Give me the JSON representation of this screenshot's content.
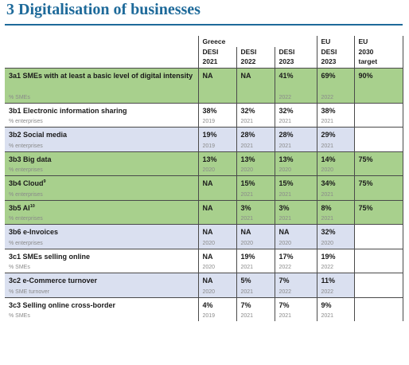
{
  "title": "3 Digitalisation of businesses",
  "header": {
    "group_greece": "Greece",
    "group_eu": "EU",
    "group_eu_target": "EU",
    "cols": [
      {
        "l1": "DESI",
        "l2": "2021"
      },
      {
        "l1": "DESI",
        "l2": "2022"
      },
      {
        "l1": "DESI",
        "l2": "2023"
      },
      {
        "l1": "DESI",
        "l2": "2023"
      },
      {
        "l1": "2030",
        "l2": "target"
      }
    ]
  },
  "rows": [
    {
      "name": "3a1 SMEs with at least a basic level of digital intensity",
      "sup": "",
      "unit": "% SMEs",
      "values": [
        "NA",
        "NA",
        "41%",
        "69%",
        "90%"
      ],
      "years": [
        "",
        "",
        "2022",
        "2022",
        ""
      ],
      "shade": "green"
    },
    {
      "name": "3b1 Electronic information sharing",
      "sup": "",
      "unit": "% enterprises",
      "values": [
        "38%",
        "32%",
        "32%",
        "38%",
        ""
      ],
      "years": [
        "2019",
        "2021",
        "2021",
        "2021",
        ""
      ],
      "shade": "none"
    },
    {
      "name": "3b2 Social media",
      "sup": "",
      "unit": "% enterprises",
      "values": [
        "19%",
        "28%",
        "28%",
        "29%",
        ""
      ],
      "years": [
        "2019",
        "2021",
        "2021",
        "2021",
        ""
      ],
      "shade": "blue"
    },
    {
      "name": "3b3 Big data",
      "sup": "",
      "unit": "% enterprises",
      "values": [
        "13%",
        "13%",
        "13%",
        "14%",
        "75%"
      ],
      "years": [
        "2020",
        "2020",
        "2020",
        "2020",
        ""
      ],
      "shade": "green"
    },
    {
      "name": "3b4 Cloud",
      "sup": "9",
      "unit": "% enterprises",
      "values": [
        "NA",
        "15%",
        "15%",
        "34%",
        "75%"
      ],
      "years": [
        "",
        "2021",
        "2021",
        "2021",
        ""
      ],
      "shade": "green"
    },
    {
      "name": "3b5 AI",
      "sup": "10",
      "unit": "% enterprises",
      "values": [
        "NA",
        "3%",
        "3%",
        "8%",
        "75%"
      ],
      "years": [
        "",
        "2021",
        "2021",
        "2021",
        ""
      ],
      "shade": "green"
    },
    {
      "name": "3b6 e-Invoices",
      "sup": "",
      "unit": "% enterprises",
      "values": [
        "NA",
        "NA",
        "NA",
        "32%",
        ""
      ],
      "years": [
        "2020",
        "2020",
        "2020",
        "2020",
        ""
      ],
      "shade": "blue"
    },
    {
      "name": "3c1 SMEs selling online",
      "sup": "",
      "unit": "% SMEs",
      "values": [
        "NA",
        "19%",
        "17%",
        "19%",
        ""
      ],
      "years": [
        "2020",
        "2021",
        "2022",
        "2022",
        ""
      ],
      "shade": "none"
    },
    {
      "name": "3c2 e-Commerce turnover",
      "sup": "",
      "unit": "% SME turnover",
      "values": [
        "NA",
        "5%",
        "7%",
        "11%",
        ""
      ],
      "years": [
        "2020",
        "2021",
        "2022",
        "2022",
        ""
      ],
      "shade": "blue"
    },
    {
      "name": "3c3 Selling online cross-border",
      "sup": "",
      "unit": "% SMEs",
      "values": [
        "4%",
        "7%",
        "7%",
        "9%",
        ""
      ],
      "years": [
        "2019",
        "2021",
        "2021",
        "2021",
        ""
      ],
      "shade": "none"
    }
  ],
  "colors": {
    "title": "#1e6a9a",
    "green": "#a8d08d",
    "blue": "#dae0f0"
  }
}
